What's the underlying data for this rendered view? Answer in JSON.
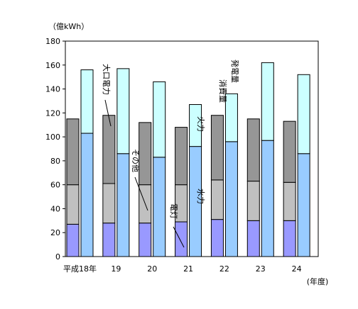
{
  "chart_data": {
    "type": "bar",
    "stacked": true,
    "grouped": true,
    "y_unit": "（億kWh）",
    "ylim": [
      0,
      180
    ],
    "yticks": [
      0,
      20,
      40,
      60,
      80,
      100,
      120,
      140,
      160,
      180
    ],
    "categories": [
      "平成18年",
      "19",
      "20",
      "21",
      "22",
      "23",
      "24"
    ],
    "x_unit": "(年度)",
    "groups": [
      {
        "label": "消費量",
        "series": [
          {
            "name": "電灯",
            "color": "#9999ff",
            "values": [
              27,
              28,
              28,
              29,
              31,
              30,
              30
            ]
          },
          {
            "name": "その他",
            "color": "#c0c0c0",
            "values": [
              33,
              33,
              32,
              31,
              33,
              33,
              32
            ]
          },
          {
            "name": "大口電力",
            "color": "#969696",
            "values": [
              55,
              57,
              52,
              48,
              54,
              52,
              51
            ]
          }
        ],
        "totals": [
          115,
          118,
          112,
          108,
          118,
          115,
          113
        ]
      },
      {
        "label": "発電量",
        "series": [
          {
            "name": "水力",
            "color": "#99ccff",
            "values": [
              103,
              86,
              83,
              92,
              96,
              97,
              86
            ]
          },
          {
            "name": "火力",
            "color": "#ccffff",
            "values": [
              53,
              71,
              63,
              35,
              40,
              65,
              66
            ]
          }
        ],
        "totals": [
          156,
          157,
          146,
          127,
          136,
          162,
          152
        ]
      }
    ],
    "annotations": [
      "大口電力",
      "その他",
      "電灯",
      "火力",
      "水力",
      "消費量",
      "発電量"
    ],
    "grid": false
  }
}
